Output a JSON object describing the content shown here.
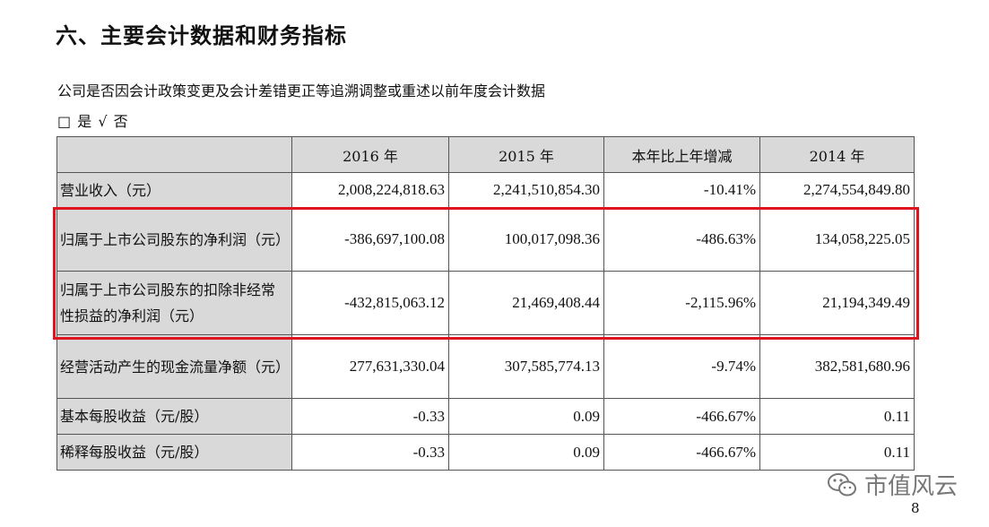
{
  "heading": "六、主要会计数据和财务指标",
  "note": "公司是否因会计政策变更及会计差错更正等追溯调整或重述以前年度会计数据",
  "choice": {
    "box": "□",
    "yes": "是",
    "check": "√",
    "no": "否"
  },
  "table": {
    "columns": [
      "",
      "2016 年",
      "2015 年",
      "本年比上年增减",
      "2014 年"
    ],
    "rows": [
      {
        "label": "营业收入（元）",
        "values": [
          "2,008,224,818.63",
          "2,241,510,854.30",
          "-10.41%",
          "2,274,554,849.80"
        ]
      },
      {
        "label": "归属于上市公司股东的净利润（元）",
        "values": [
          "-386,697,100.08",
          "100,017,098.36",
          "-486.63%",
          "134,058,225.05"
        ]
      },
      {
        "label": "归属于上市公司股东的扣除非经常性损益的净利润（元）",
        "values": [
          "-432,815,063.12",
          "21,469,408.44",
          "-2,115.96%",
          "21,194,349.49"
        ]
      },
      {
        "label": "经营活动产生的现金流量净额（元）",
        "values": [
          "277,631,330.04",
          "307,585,774.13",
          "-9.74%",
          "382,581,680.96"
        ]
      },
      {
        "label": "基本每股收益（元/股）",
        "values": [
          "-0.33",
          "0.09",
          "-466.67%",
          "0.11"
        ]
      },
      {
        "label": "稀释每股收益（元/股）",
        "values": [
          "-0.33",
          "0.09",
          "-466.67%",
          "0.11"
        ]
      }
    ]
  },
  "highlight_color": "#e0141e",
  "watermark": {
    "icon": "wechat-icon",
    "text": "市值风云"
  },
  "page_number": "8"
}
